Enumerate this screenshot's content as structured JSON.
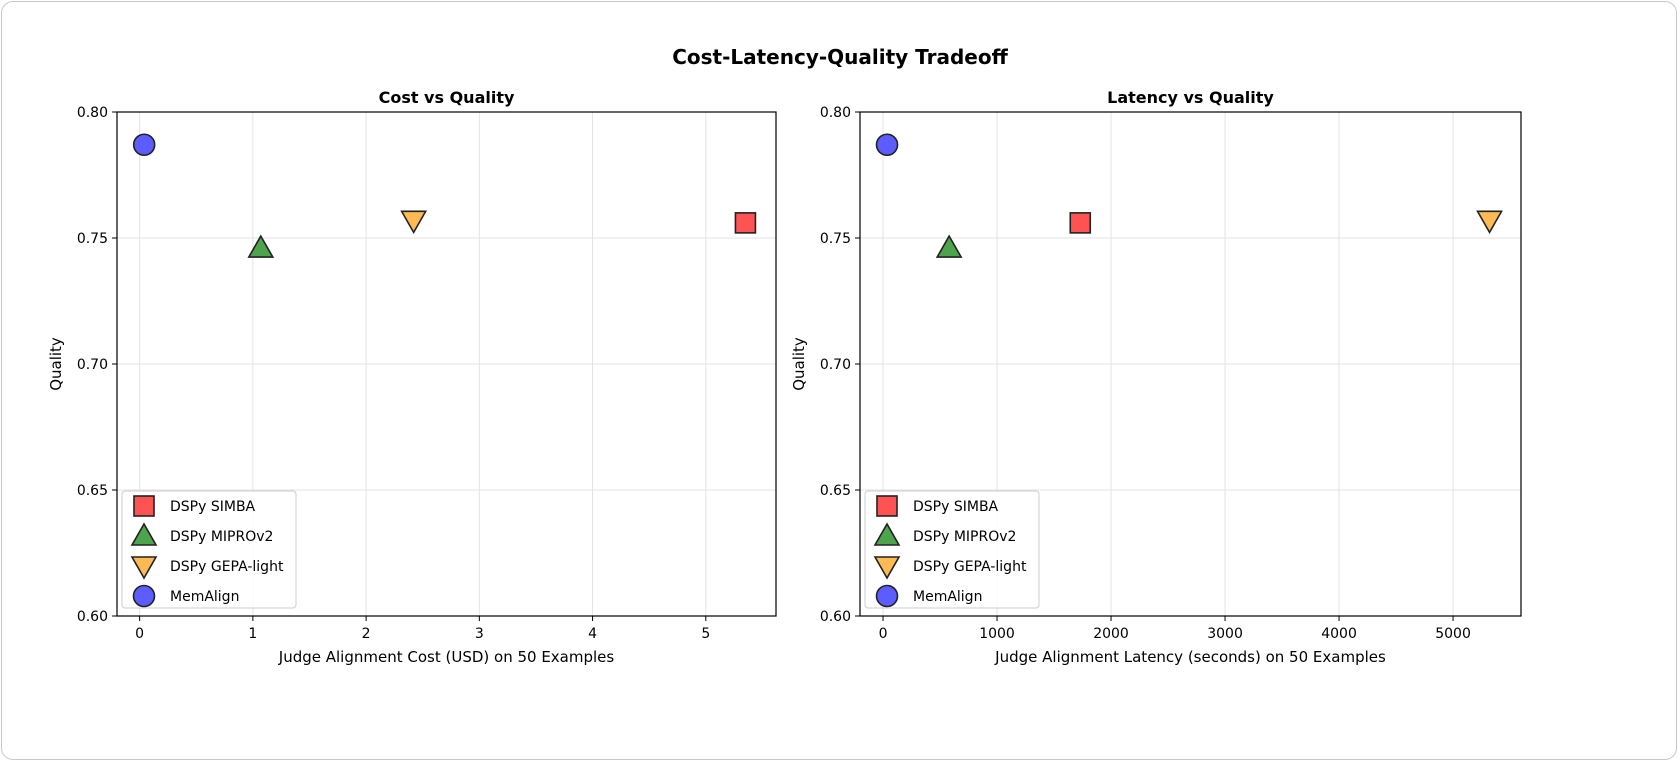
{
  "title": "Cost-Latency-Quality Tradeoff",
  "chart_data": [
    {
      "type": "scatter",
      "title": "Cost vs Quality",
      "xlabel": "Judge Alignment Cost (USD) on 50 Examples",
      "ylabel": "Quality",
      "xlim": [
        -0.2,
        5.62
      ],
      "ylim": [
        0.6,
        0.8
      ],
      "xticks": [
        0,
        1,
        2,
        3,
        4,
        5
      ],
      "xtick_labels": [
        "0",
        "1",
        "2",
        "3",
        "4",
        "5"
      ],
      "yticks": [
        0.6,
        0.65,
        0.7,
        0.75,
        0.8
      ],
      "ytick_labels": [
        "0.60",
        "0.65",
        "0.70",
        "0.75",
        "0.80"
      ],
      "grid": true,
      "legend": "lower-left",
      "series": [
        {
          "name": "DSPy SIMBA",
          "marker": "square",
          "color": "#ff4040",
          "x": [
            5.35
          ],
          "y": [
            0.756
          ]
        },
        {
          "name": "DSPy MIPROv2",
          "marker": "triangle-up",
          "color": "#3a9a3a",
          "x": [
            1.07
          ],
          "y": [
            0.746
          ]
        },
        {
          "name": "DSPy GEPA-light",
          "marker": "triangle-down",
          "color": "#ffb340",
          "x": [
            2.42
          ],
          "y": [
            0.757
          ]
        },
        {
          "name": "MemAlign",
          "marker": "circle",
          "color": "#4a4aff",
          "x": [
            0.04
          ],
          "y": [
            0.787
          ]
        }
      ]
    },
    {
      "type": "scatter",
      "title": "Latency vs Quality",
      "xlabel": "Judge Alignment Latency (seconds) on 50 Examples",
      "ylabel": "Quality",
      "xlim": [
        -202,
        5596
      ],
      "ylim": [
        0.6,
        0.8
      ],
      "xticks": [
        0,
        1000,
        2000,
        3000,
        4000,
        5000
      ],
      "xtick_labels": [
        "0",
        "1000",
        "2000",
        "3000",
        "4000",
        "5000"
      ],
      "yticks": [
        0.6,
        0.65,
        0.7,
        0.75,
        0.8
      ],
      "ytick_labels": [
        "0.60",
        "0.65",
        "0.70",
        "0.75",
        "0.80"
      ],
      "grid": true,
      "legend": "lower-left",
      "series": [
        {
          "name": "DSPy SIMBA",
          "marker": "square",
          "color": "#ff4040",
          "x": [
            1730
          ],
          "y": [
            0.756
          ]
        },
        {
          "name": "DSPy MIPROv2",
          "marker": "triangle-up",
          "color": "#3a9a3a",
          "x": [
            580
          ],
          "y": [
            0.746
          ]
        },
        {
          "name": "DSPy GEPA-light",
          "marker": "triangle-down",
          "color": "#ffb340",
          "x": [
            5320
          ],
          "y": [
            0.757
          ]
        },
        {
          "name": "MemAlign",
          "marker": "circle",
          "color": "#4a4aff",
          "x": [
            35
          ],
          "y": [
            0.787
          ]
        }
      ]
    }
  ]
}
